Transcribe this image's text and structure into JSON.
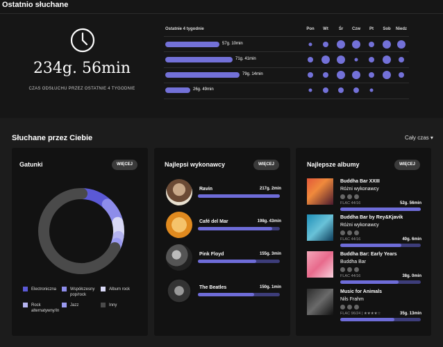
{
  "header": {
    "title": "Ostatnio słuchane"
  },
  "summary": {
    "total": "234g. 56min",
    "caption": "CZAS ODSŁUCHU PRZEZ OSTATNIE 4 TYGODNIE"
  },
  "weeks": {
    "heading": "Ostatnie 4 tygodnie",
    "days": [
      "Pon",
      "Wt",
      "Śr",
      "Czw",
      "Pt",
      "Sob",
      "Niedz"
    ],
    "rows": [
      {
        "label": "57g. 10min",
        "fraction": 0.73,
        "dots": [
          1,
          2,
          3,
          3,
          2,
          3,
          3
        ]
      },
      {
        "label": "71g. 41min",
        "fraction": 0.91,
        "dots": [
          2,
          3,
          3,
          1,
          2,
          3,
          2
        ]
      },
      {
        "label": "79g. 14min",
        "fraction": 1.0,
        "dots": [
          2,
          2,
          3,
          3,
          2,
          3,
          2
        ]
      },
      {
        "label": "26g. 49min",
        "fraction": 0.34,
        "dots": [
          1,
          2,
          2,
          2,
          1,
          0,
          0
        ]
      }
    ]
  },
  "section": {
    "title": "Słuchane przez Ciebie",
    "period": "Cały czas ▾"
  },
  "genres": {
    "title": "Gatunki",
    "more": "WIĘCEJ",
    "items": [
      {
        "label": "Electroniczna",
        "color": "#5b59d6",
        "value": 12
      },
      {
        "label": "Współczesny pop/rock",
        "color": "#8d8cea",
        "value": 9
      },
      {
        "label": "Album rock",
        "color": "#d9d9f6",
        "value": 6
      },
      {
        "label": "Rock alternatywny/In",
        "color": "#b5b4f0",
        "value": 3
      },
      {
        "label": "Jazz",
        "color": "#9a9af0",
        "value": 2
      },
      {
        "label": "Inny",
        "color": "#4a4a4a",
        "value": 68
      }
    ]
  },
  "artists": {
    "title": "Najlepsi wykonawcy",
    "more": "WIĘCEJ",
    "items": [
      {
        "name": "Ravin",
        "time": "217g. 2min",
        "fraction": 1.0
      },
      {
        "name": "Café del Mar",
        "time": "198g. 43min",
        "fraction": 0.91
      },
      {
        "name": "Pink Floyd",
        "time": "155g. 3min",
        "fraction": 0.71
      },
      {
        "name": "The Beatles",
        "time": "150g. 1min",
        "fraction": 0.69
      }
    ]
  },
  "albums": {
    "title": "Najlepsze albumy",
    "more": "WIĘCEJ",
    "items": [
      {
        "title": "Buddha Bar XXIII",
        "artist": "Różni wykonawcy",
        "format": "FLAC 44/16",
        "time": "52g. 56min",
        "fraction": 1.0
      },
      {
        "title": "Buddha Bar by Rey&Kjavik",
        "artist": "Różni wykonawcy",
        "format": "FLAC 44/16",
        "time": "40g. 6min",
        "fraction": 0.76
      },
      {
        "title": "Buddha Bar: Early Years",
        "artist": "Buddha Bar",
        "format": "FLAC 44/16",
        "time": "38g. 0min",
        "fraction": 0.72
      },
      {
        "title": "Music for Animals",
        "artist": "Nils Frahm",
        "format": "FLAC 96/24 | ★★★★☆",
        "time": "35g. 13min",
        "fraction": 0.67
      }
    ]
  }
}
